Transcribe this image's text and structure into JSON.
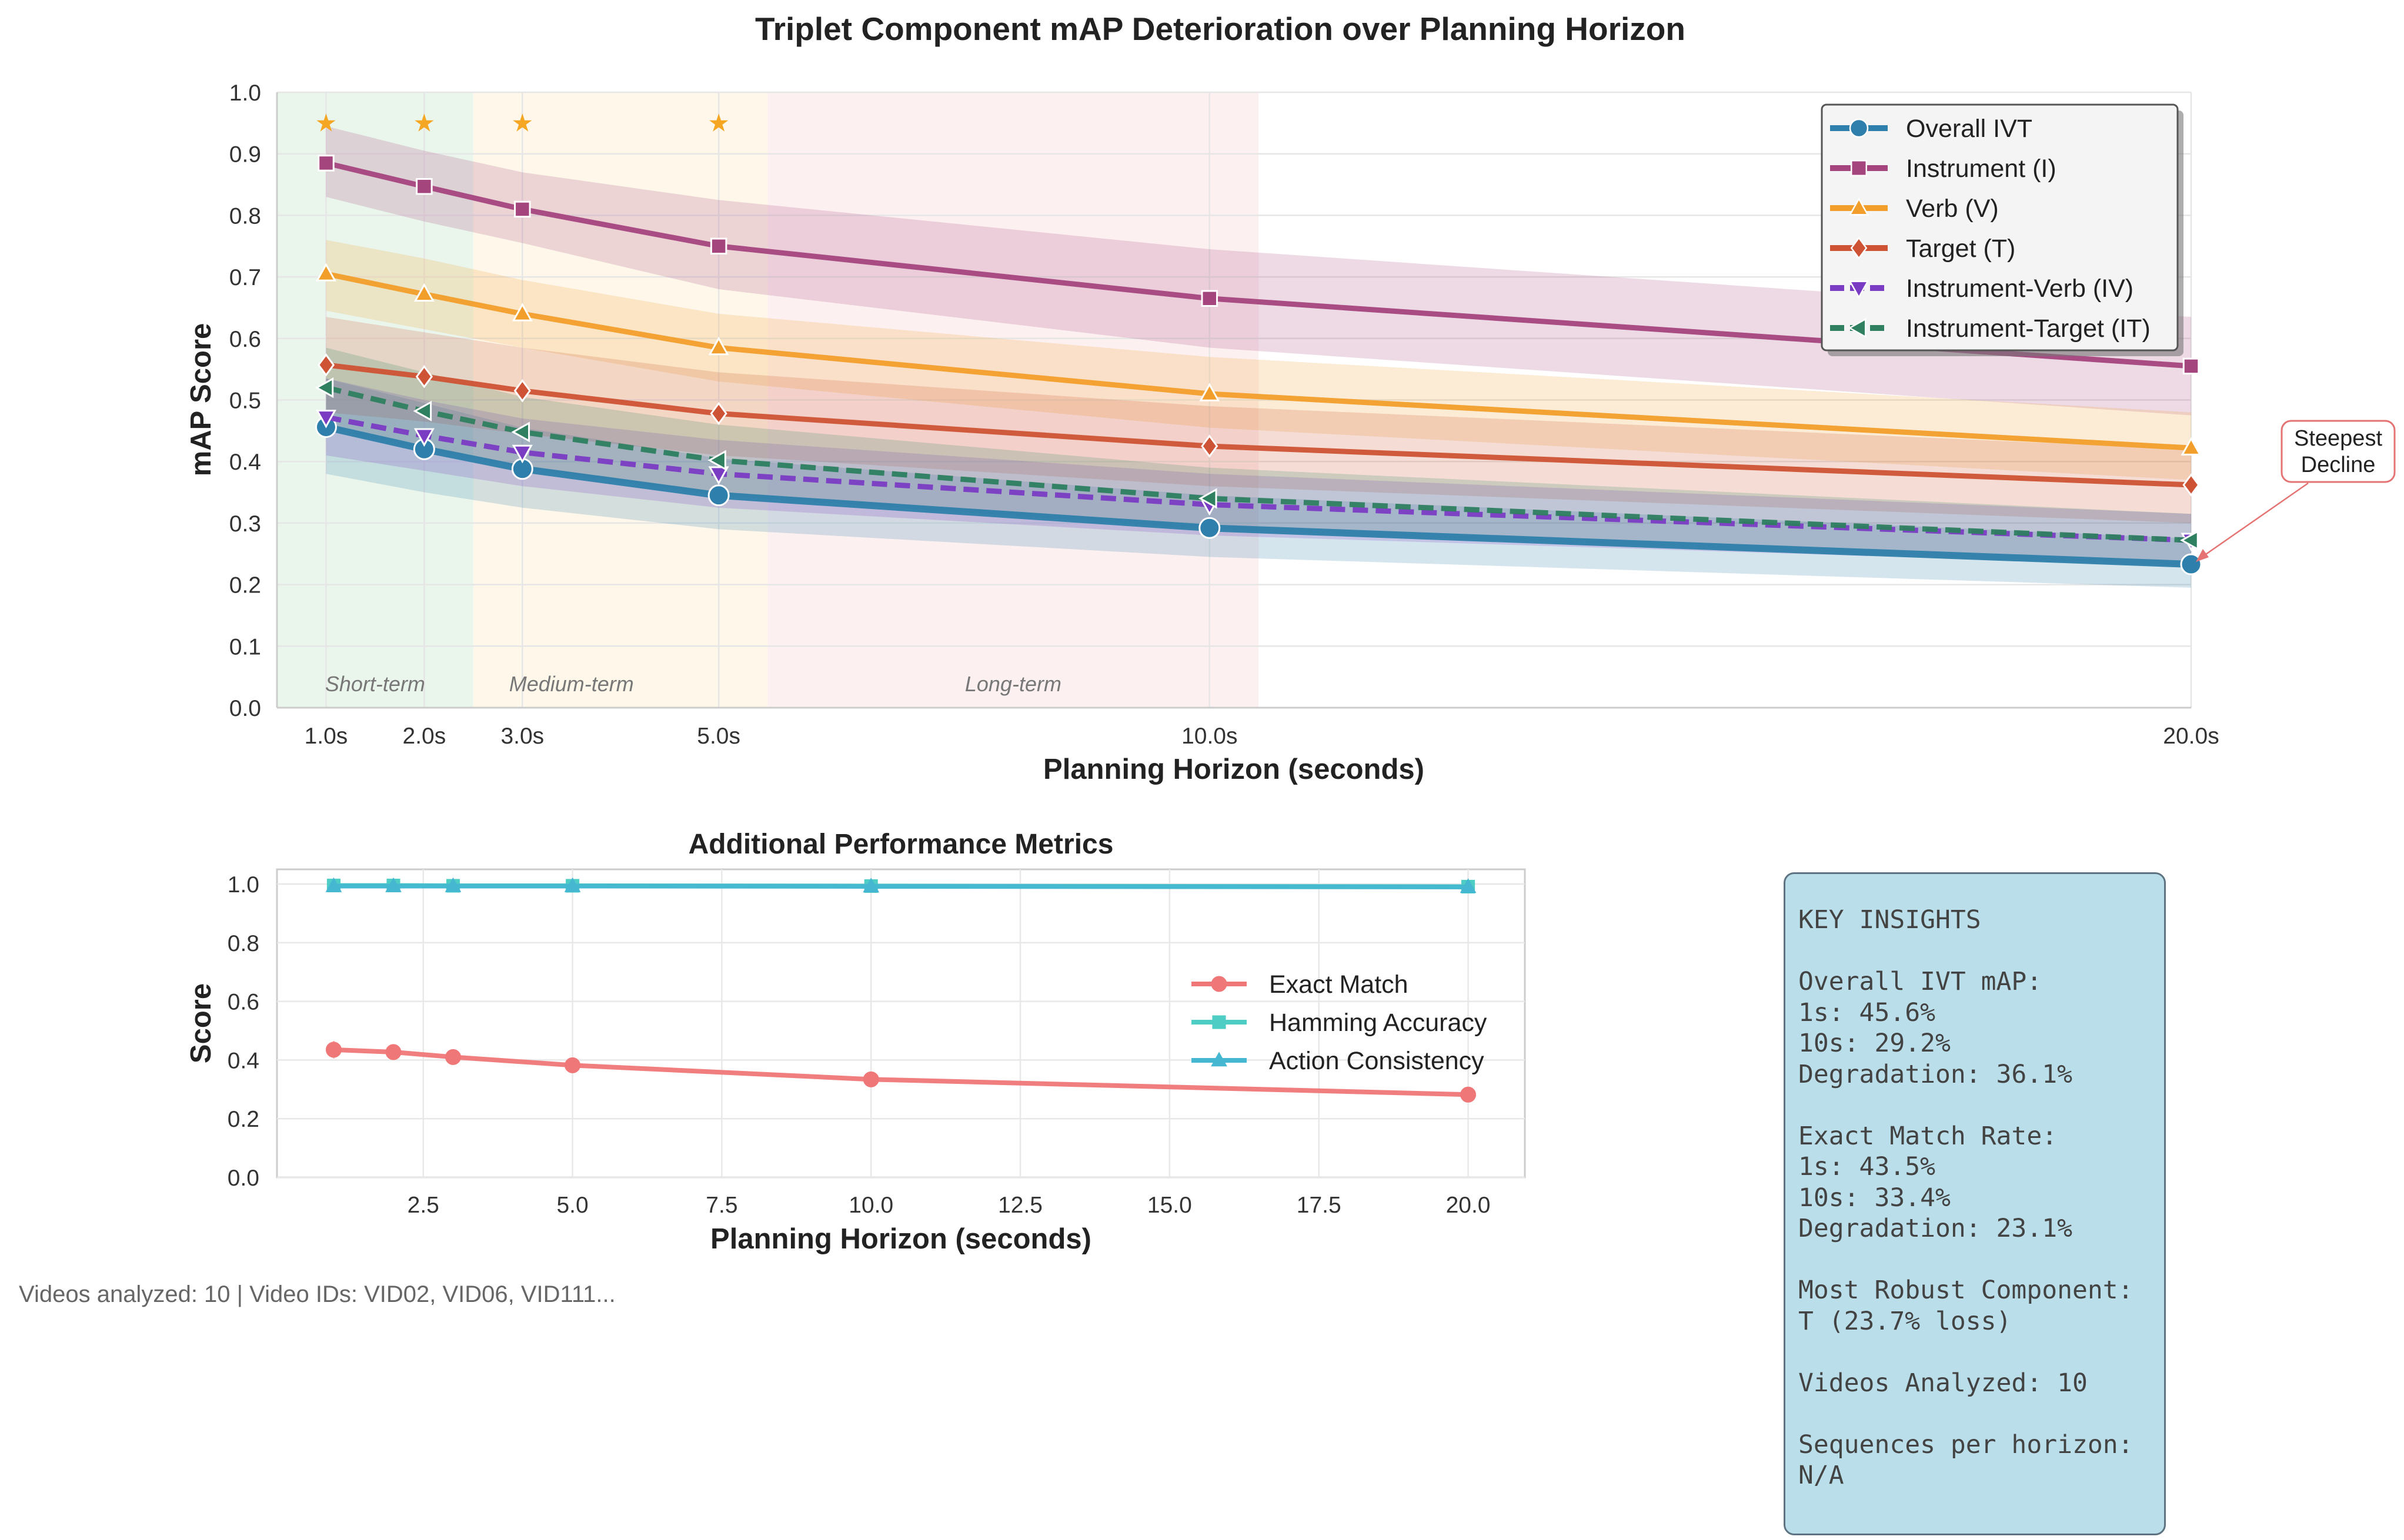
{
  "title": "Triplet Component mAP Deterioration over Planning Horizon",
  "footer": "Videos analyzed: 10 | Video IDs: VID02, VID06, VID111...",
  "insights": [
    "KEY INSIGHTS",
    "",
    "Overall IVT mAP:",
    "1s: 45.6%",
    "10s: 29.2%",
    "Degradation: 36.1%",
    "",
    "Exact Match Rate:",
    "1s: 43.5%",
    "10s: 33.4%",
    "Degradation: 23.1%",
    "",
    "Most Robust Component:",
    "T (23.7% loss)",
    "",
    "Videos Analyzed: 10",
    "",
    "Sequences per horizon:",
    "N/A"
  ],
  "chart_data": [
    {
      "type": "line",
      "title": "Triplet Component mAP Deterioration over Planning Horizon",
      "xlabel": "Planning Horizon (seconds)",
      "ylabel": "mAP Score",
      "x": [
        1,
        2,
        3,
        5,
        10,
        20
      ],
      "x_tick_labels": [
        "1.0s",
        "2.0s",
        "3.0s",
        "5.0s",
        "10.0s",
        "20.0s"
      ],
      "xlim": [
        0.5,
        20
      ],
      "ylim": [
        0,
        1.0
      ],
      "y_ticks": [
        "0.0",
        "0.1",
        "0.2",
        "0.3",
        "0.4",
        "0.5",
        "0.6",
        "0.7",
        "0.8",
        "0.9",
        "1.0"
      ],
      "grid": true,
      "legend_position": "top-right",
      "series": [
        {
          "name": "Overall IVT",
          "color": "#2e7fab",
          "marker": "circle",
          "dash": "solid",
          "values": [
            0.456,
            0.42,
            0.388,
            0.345,
            0.292,
            0.233
          ],
          "band_low": [
            0.38,
            0.35,
            0.325,
            0.29,
            0.245,
            0.195
          ],
          "band_high": [
            0.535,
            0.495,
            0.455,
            0.405,
            0.345,
            0.275
          ]
        },
        {
          "name": "Instrument (I)",
          "color": "#a5457e",
          "marker": "square",
          "dash": "solid",
          "values": [
            0.885,
            0.847,
            0.81,
            0.75,
            0.665,
            0.555
          ],
          "band_low": [
            0.83,
            0.79,
            0.755,
            0.68,
            0.585,
            0.475
          ],
          "band_high": [
            0.945,
            0.905,
            0.87,
            0.825,
            0.745,
            0.635
          ]
        },
        {
          "name": "Verb (V)",
          "color": "#f29e2b",
          "marker": "triangle-up",
          "dash": "solid",
          "values": [
            0.705,
            0.672,
            0.64,
            0.585,
            0.51,
            0.422
          ],
          "band_low": [
            0.645,
            0.615,
            0.585,
            0.53,
            0.455,
            0.37
          ],
          "band_high": [
            0.76,
            0.73,
            0.695,
            0.64,
            0.57,
            0.48
          ]
        },
        {
          "name": "Target (T)",
          "color": "#cd5334",
          "marker": "diamond",
          "dash": "solid",
          "values": [
            0.557,
            0.538,
            0.515,
            0.478,
            0.425,
            0.362
          ],
          "band_low": [
            0.48,
            0.465,
            0.445,
            0.41,
            0.36,
            0.3
          ],
          "band_high": [
            0.635,
            0.61,
            0.585,
            0.545,
            0.49,
            0.42
          ]
        },
        {
          "name": "Instrument-Verb (IV)",
          "color": "#7b3cc4",
          "marker": "triangle-down",
          "dash": "dashed",
          "values": [
            0.472,
            0.442,
            0.415,
            0.38,
            0.33,
            0.272
          ],
          "band_low": [
            0.41,
            0.385,
            0.36,
            0.325,
            0.28,
            0.23
          ],
          "band_high": [
            0.535,
            0.5,
            0.47,
            0.435,
            0.38,
            0.315
          ]
        },
        {
          "name": "Instrument-Target (IT)",
          "color": "#2e8060",
          "marker": "triangle-left",
          "dash": "dashed",
          "values": [
            0.52,
            0.482,
            0.448,
            0.402,
            0.34,
            0.272
          ],
          "band_low": [
            0.455,
            0.42,
            0.39,
            0.345,
            0.29,
            0.23
          ],
          "band_high": [
            0.585,
            0.545,
            0.505,
            0.46,
            0.39,
            0.315
          ]
        }
      ],
      "regions": [
        {
          "label": "Short-term",
          "x_from": 0.5,
          "x_to": 2.5,
          "color": "#d9ecdd"
        },
        {
          "label": "Medium-term",
          "x_from": 2.5,
          "x_to": 5.5,
          "color": "#fdf0d8"
        },
        {
          "label": "Long-term",
          "x_from": 5.5,
          "x_to": 10.5,
          "color": "#fbe3e4"
        }
      ],
      "stars": {
        "x": [
          1,
          2,
          3,
          5
        ],
        "y": 0.95,
        "glyph": "★",
        "color": "#f5a623"
      },
      "annotation": {
        "text": [
          "Steepest",
          "Decline"
        ],
        "points_to_x": 20,
        "points_to_y": 0.233,
        "color": "#e57373"
      }
    },
    {
      "type": "line",
      "title": "Additional Performance Metrics",
      "xlabel": "Planning Horizon (seconds)",
      "ylabel": "Score",
      "x": [
        1,
        2,
        3,
        5,
        10,
        20
      ],
      "xlim": [
        0.05,
        20.95
      ],
      "ylim": [
        0,
        1.05
      ],
      "x_ticks": [
        "2.5",
        "5.0",
        "7.5",
        "10.0",
        "12.5",
        "15.0",
        "17.5",
        "20.0"
      ],
      "y_ticks": [
        "0.0",
        "0.2",
        "0.4",
        "0.6",
        "0.8",
        "1.0"
      ],
      "grid": true,
      "legend_position": "center-right",
      "series": [
        {
          "name": "Exact Match",
          "color": "#f07777",
          "marker": "circle",
          "values": [
            0.435,
            0.427,
            0.41,
            0.382,
            0.334,
            0.282
          ]
        },
        {
          "name": "Hamming Accuracy",
          "color": "#4ecdc4",
          "marker": "square",
          "values": [
            0.995,
            0.995,
            0.994,
            0.994,
            0.993,
            0.991
          ]
        },
        {
          "name": "Action Consistency",
          "color": "#45b7d1",
          "marker": "triangle-up",
          "values": [
            0.993,
            0.993,
            0.993,
            0.993,
            0.992,
            0.99
          ]
        }
      ]
    }
  ]
}
